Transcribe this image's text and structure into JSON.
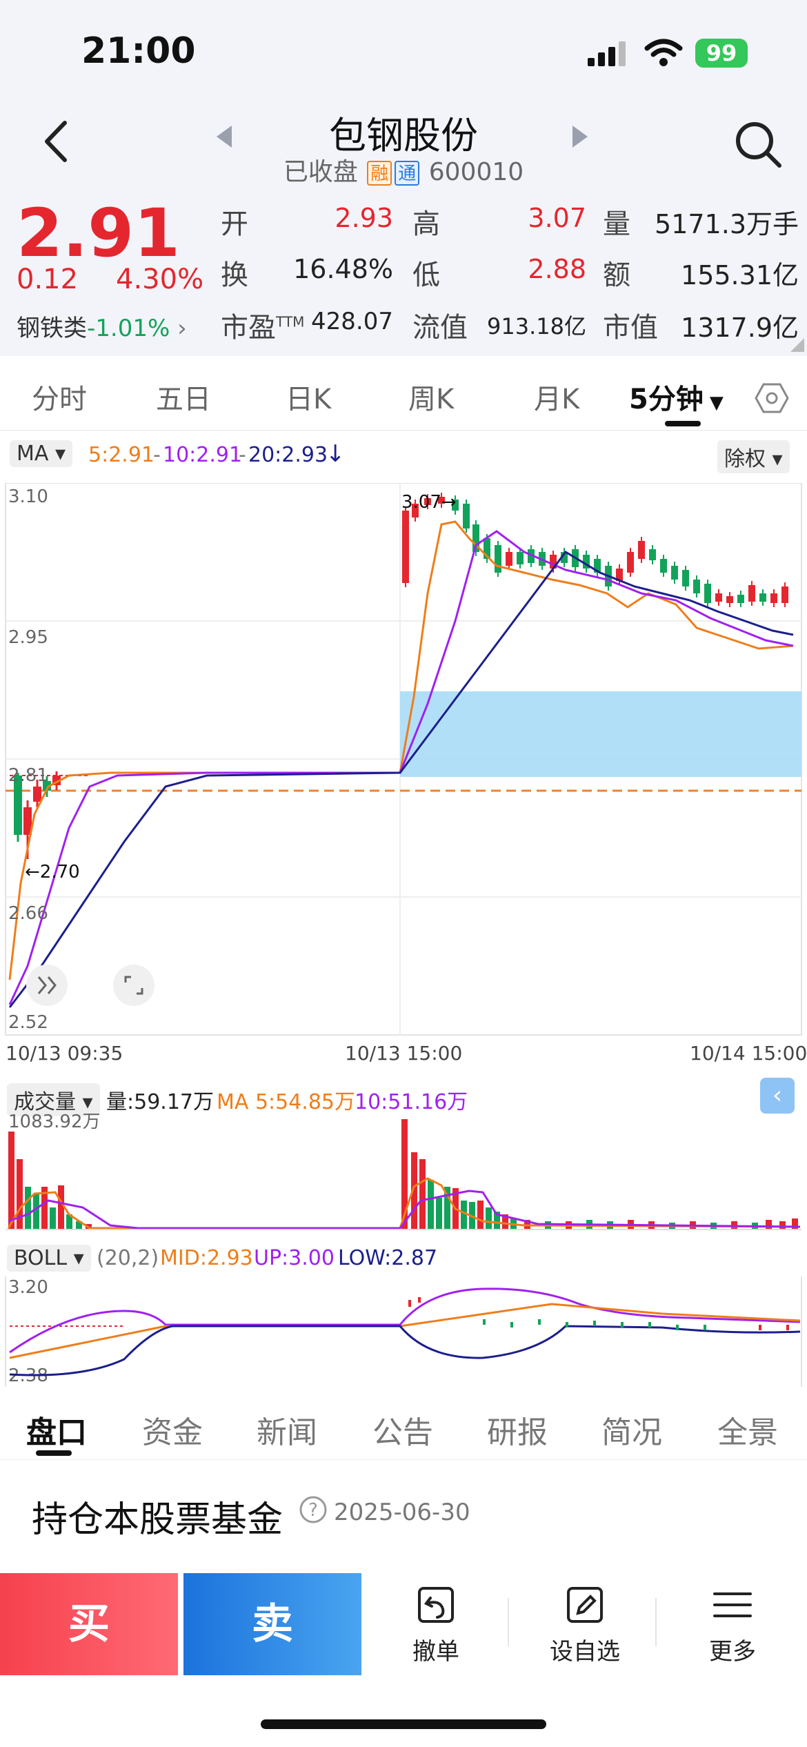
{
  "status": {
    "time": "21:00",
    "battery": "99"
  },
  "header": {
    "name": "包钢股份",
    "state": "已收盘",
    "tag1": "融",
    "tag2": "通",
    "code": "600010"
  },
  "quote": {
    "price": "2.91",
    "change": "0.12",
    "change_pct": "4.30%",
    "sector_name": "钢铁类",
    "sector_change": "-1.01%",
    "open_label": "开",
    "open": "2.93",
    "high_label": "高",
    "high": "3.07",
    "volume_label": "量",
    "volume": "5171.3万手",
    "turnover_label": "换",
    "turnover": "16.48%",
    "low_label": "低",
    "low": "2.88",
    "amount_label": "额",
    "amount": "155.31亿",
    "pe_label": "市盈",
    "pe_sup": "TTM",
    "pe": "428.07",
    "float_label": "流值",
    "float_cap": "913.18亿",
    "mcap_label": "市值",
    "mcap": "1317.9亿"
  },
  "period_tabs": [
    "分时",
    "五日",
    "日K",
    "周K",
    "月K",
    "5分钟"
  ],
  "ma_bar": {
    "selector": "MA",
    "ma5": "5:2.91",
    "ma10": "10:2.91",
    "ma20": "20:2.93",
    "arrow": "↓",
    "adjust": "除权"
  },
  "main_chart": {
    "y_labels": [
      "3.10",
      "2.95",
      "2.81",
      "2.66",
      "2.52"
    ],
    "x_labels": [
      "10/13 09:35",
      "10/13 15:00",
      "10/14 15:00"
    ],
    "high_marker": "3.07→",
    "low_marker": "←2.70"
  },
  "volume_bar": {
    "selector": "成交量",
    "vol": "量:59.17万",
    "ma5": "MA 5:54.85万",
    "ma10": "10:51.16万",
    "max_label": "1083.92万"
  },
  "boll_bar": {
    "selector": "BOLL",
    "params": "(20,2)",
    "mid": "MID:2.93",
    "up": "UP:3.00",
    "low": "LOW:2.87",
    "y_top": "3.20",
    "y_bottom": "2.38"
  },
  "bottom_tabs": [
    "盘口",
    "资金",
    "新闻",
    "公告",
    "研报",
    "简况",
    "全景"
  ],
  "fund_section": {
    "title": "持仓本股票基金",
    "date": "2025-06-30"
  },
  "actions": {
    "buy": "买",
    "sell": "卖",
    "cancel": "撤单",
    "watch": "设自选",
    "more": "更多"
  },
  "colors": {
    "up": "#e4262e",
    "down": "#12a35a",
    "ma5": "#ef7d19",
    "ma10": "#a020f0",
    "ma20": "#1b1f8c",
    "zone": "#a8dcf7"
  }
}
